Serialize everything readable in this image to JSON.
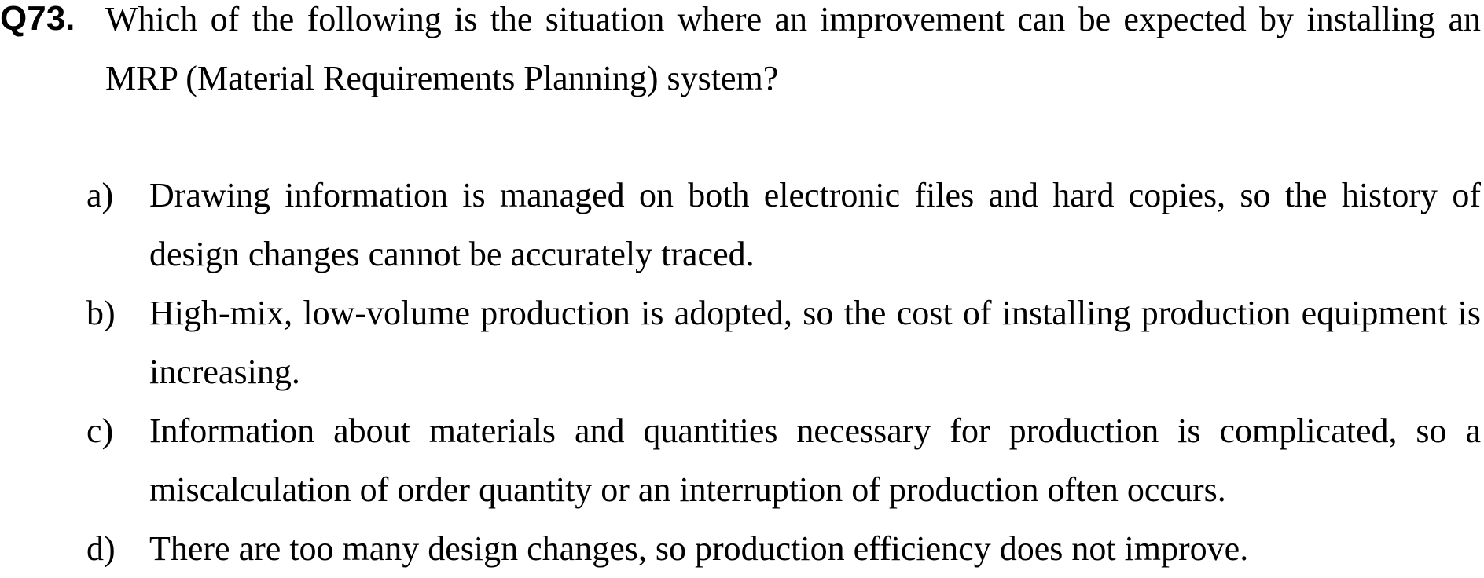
{
  "question": {
    "number": "Q73.",
    "text": "Which of the following is the situation where an improvement can be expected by installing an MRP (Material Requirements Planning) system?"
  },
  "options": [
    {
      "letter": "a)",
      "text": "Drawing information is managed on both electronic files and hard copies, so the history of design changes cannot be accurately traced."
    },
    {
      "letter": "b)",
      "text": "High-mix, low-volume production is adopted, so the cost of installing production equipment is increasing."
    },
    {
      "letter": "c)",
      "text": "Information about materials and quantities necessary for production is complicated, so a miscalculation of order quantity or an interruption of production often occurs."
    },
    {
      "letter": "d)",
      "text": "There are too many design changes, so production efficiency does not improve."
    }
  ]
}
